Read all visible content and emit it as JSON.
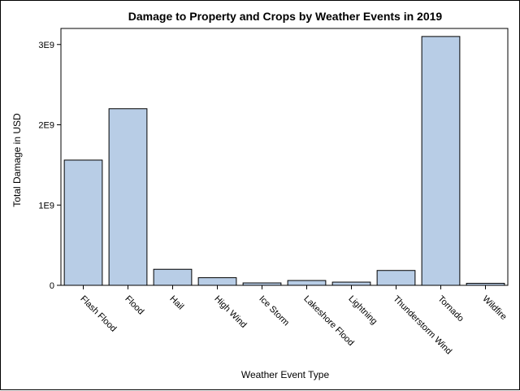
{
  "chart_data": {
    "type": "bar",
    "title": "Damage to Property and Crops by Weather Events in 2019",
    "xlabel": "Weather Event Type",
    "ylabel": "Total Damage in USD",
    "categories": [
      "Flash Flood",
      "Flood",
      "Hail",
      "High Wind",
      "Ice Storm",
      "Lakeshore Flood",
      "Lightning",
      "Thunderstorm Wind",
      "Tornado",
      "Wildfire"
    ],
    "values": [
      1560000000,
      2200000000,
      200000000,
      95000000,
      30000000,
      60000000,
      40000000,
      185000000,
      3100000000,
      25000000
    ],
    "ylim": [
      0,
      3200000000
    ],
    "yticks": [
      {
        "value": 0,
        "label": "0"
      },
      {
        "value": 1000000000,
        "label": "1E9"
      },
      {
        "value": 2000000000,
        "label": "2E9"
      },
      {
        "value": 3000000000,
        "label": "3E9"
      }
    ],
    "bar_fill": "#b8cde6",
    "bar_stroke": "#000000",
    "grid": false,
    "legend": false
  }
}
